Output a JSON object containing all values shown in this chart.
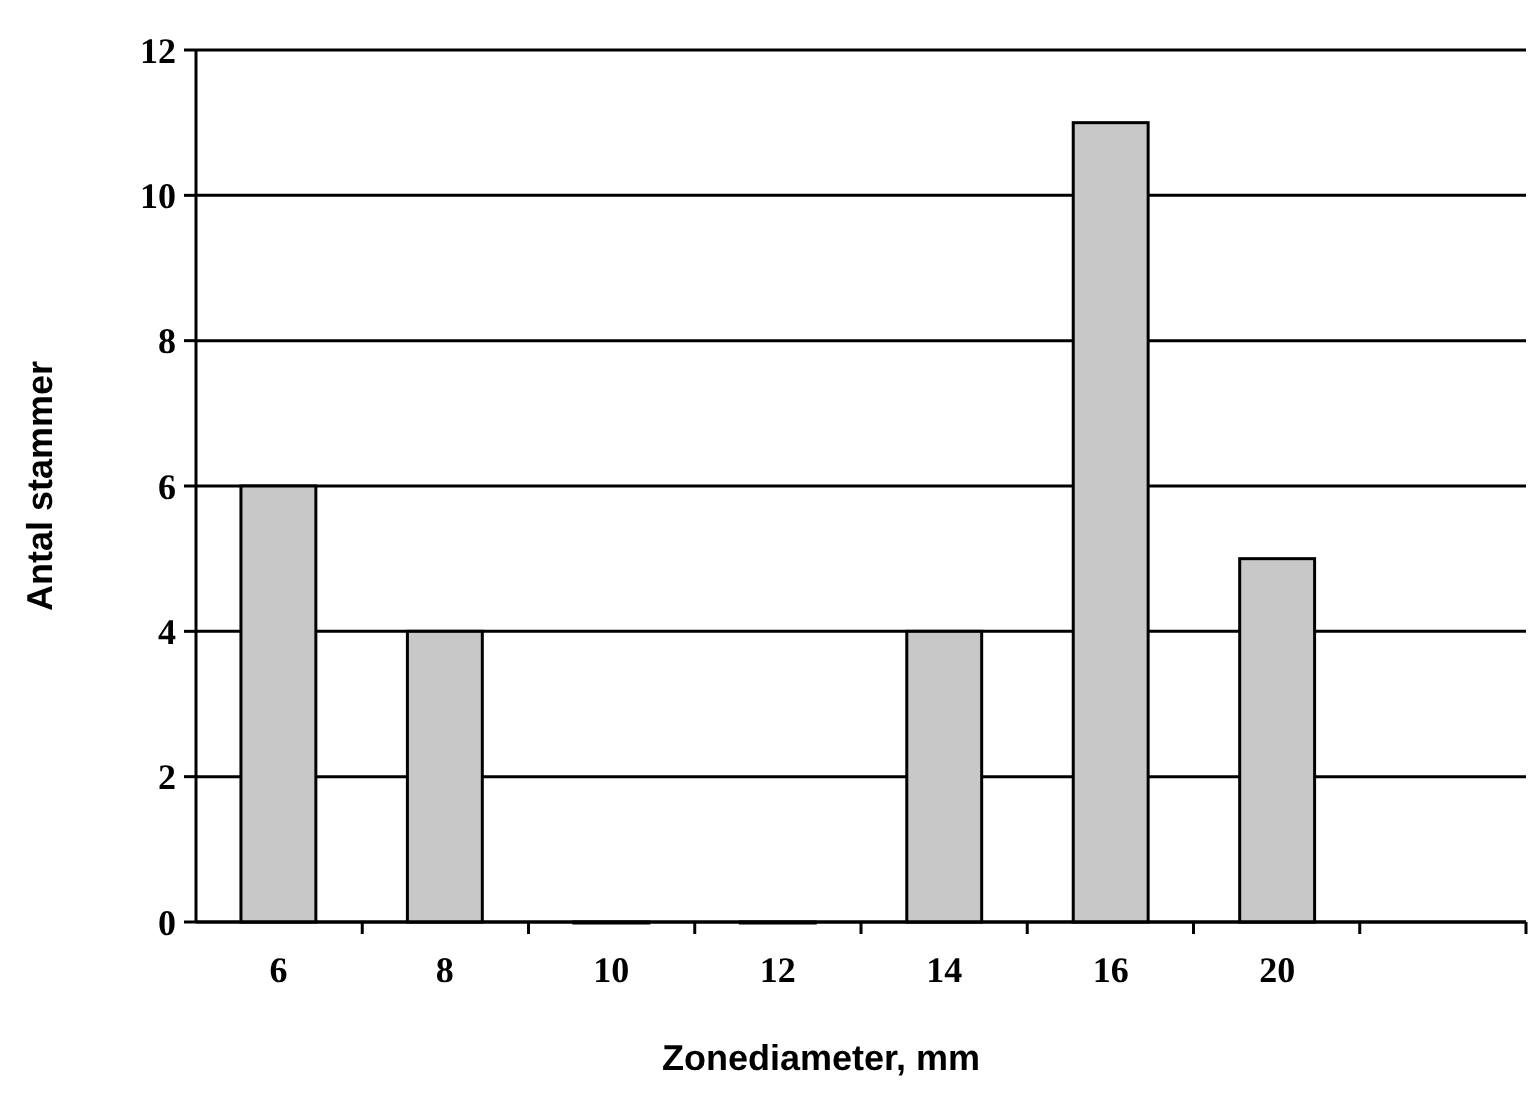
{
  "chart_data": {
    "type": "bar",
    "xlabel": "Zonediameter, mm",
    "ylabel": "Antal stammer",
    "categories": [
      "6",
      "8",
      "10",
      "12",
      "14",
      "16",
      "20",
      null
    ],
    "values": [
      6,
      4,
      0,
      0,
      4,
      11,
      5,
      null
    ],
    "color": "#c8c8c8",
    "ylim": [
      0,
      12
    ],
    "yticks": [
      0,
      2,
      4,
      6,
      8,
      10,
      12
    ],
    "grid": "y"
  }
}
